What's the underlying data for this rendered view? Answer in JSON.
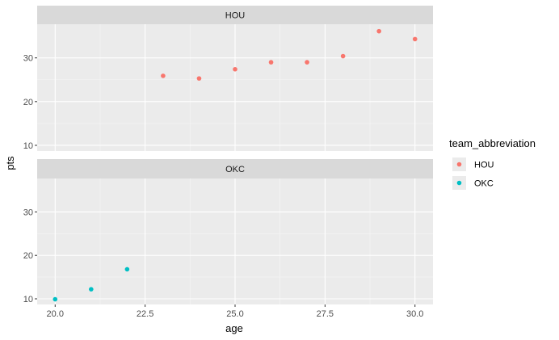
{
  "chart_data": {
    "type": "scatter",
    "xlabel": "age",
    "ylabel": "pts",
    "xlim": [
      19.5,
      30.5
    ],
    "ylim": [
      8.7,
      37.7
    ],
    "x_ticks": [
      "20.0",
      "22.5",
      "25.0",
      "27.5",
      "30.0"
    ],
    "x_tick_values": [
      20.0,
      22.5,
      25.0,
      27.5,
      30.0
    ],
    "y_ticks": [
      "10",
      "20",
      "30"
    ],
    "y_tick_values": [
      10,
      20,
      30
    ],
    "grid": true,
    "legend": {
      "title": "team_abbreviation",
      "position": "right",
      "entries": [
        "HOU",
        "OKC"
      ]
    },
    "colors": {
      "HOU": "#F8766D",
      "OKC": "#00BFC4"
    },
    "facets": [
      {
        "label": "HOU",
        "points": [
          {
            "x": 23,
            "y": 25.9
          },
          {
            "x": 24,
            "y": 25.3
          },
          {
            "x": 25,
            "y": 27.4
          },
          {
            "x": 26,
            "y": 29.0
          },
          {
            "x": 27,
            "y": 29.0
          },
          {
            "x": 28,
            "y": 30.4
          },
          {
            "x": 29,
            "y": 36.1
          },
          {
            "x": 30,
            "y": 34.3
          }
        ]
      },
      {
        "label": "OKC",
        "points": [
          {
            "x": 20,
            "y": 9.9
          },
          {
            "x": 21,
            "y": 12.2
          },
          {
            "x": 22,
            "y": 16.8
          }
        ]
      }
    ]
  }
}
